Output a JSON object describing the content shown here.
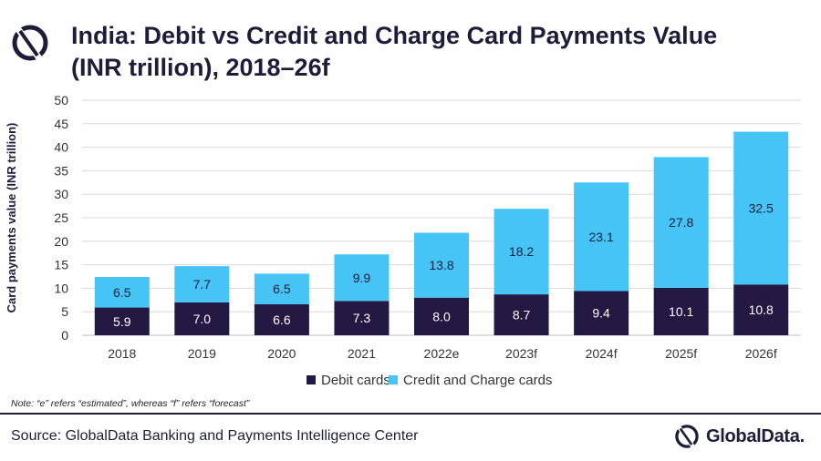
{
  "header": {
    "title_line1": "India: Debit vs Credit and Charge Card Payments Value",
    "title_line2": "(INR trillion), 2018–26f"
  },
  "chart_data": {
    "type": "bar",
    "stacked": true,
    "categories": [
      "2018",
      "2019",
      "2020",
      "2021",
      "2022e",
      "2023f",
      "2024f",
      "2025f",
      "2026f"
    ],
    "series": [
      {
        "name": "Debit cards",
        "color": "#231942",
        "label_color": "#ffffff",
        "values": [
          5.9,
          7.0,
          6.6,
          7.3,
          8.0,
          8.7,
          9.4,
          10.1,
          10.8
        ]
      },
      {
        "name": "Credit and Charge cards",
        "color": "#45c4f5",
        "label_color": "#1d1d3a",
        "values": [
          6.5,
          7.7,
          6.5,
          9.9,
          13.8,
          18.2,
          23.1,
          27.8,
          32.5
        ]
      }
    ],
    "ylabel": "Card payments value (INR trillion)",
    "xlabel": "",
    "ylim": [
      0,
      50
    ],
    "yticks": [
      0,
      5,
      10,
      15,
      20,
      25,
      30,
      35,
      40,
      45,
      50
    ],
    "grid": true,
    "legend_position": "bottom"
  },
  "footer": {
    "note": "Note: “e” refers “estimated”, whereas “f” refers “forecast”",
    "source": "Source: GlobalData Banking and Payments Intelligence Center",
    "brand": "GlobalData."
  },
  "colors": {
    "navy": "#1d1d3a",
    "grid": "#d9d9d9"
  }
}
